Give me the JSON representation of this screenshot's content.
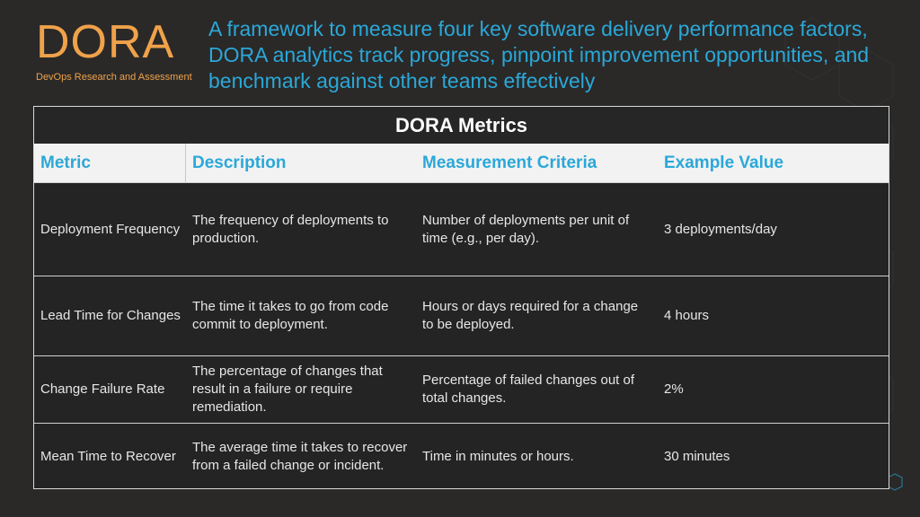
{
  "logo": {
    "title": "DORA",
    "subtitle": "DevOps Research and Assessment"
  },
  "headline": "A framework to measure four key software delivery performance factors, DORA analytics track progress, pinpoint improvement opportunities, and benchmark against other teams effectively",
  "table": {
    "title": "DORA Metrics",
    "headers": [
      "Metric",
      "Description",
      "Measurement Criteria",
      "Example Value"
    ],
    "rows": [
      {
        "metric": "Deployment Frequency",
        "description": "The frequency of deployments to production.",
        "criteria": "Number of deployments per unit of time (e.g., per day).",
        "example": "3 deployments/day"
      },
      {
        "metric": "Lead Time for Changes",
        "description": "The time it takes to go from code commit to deployment.",
        "criteria": "Hours or days required for a change to be deployed.",
        "example": "4 hours"
      },
      {
        "metric": "Change Failure Rate",
        "description": "The percentage of changes that result in a failure or require remediation.",
        "criteria": "Percentage of failed changes out of total changes.",
        "example": "2%"
      },
      {
        "metric": "Mean Time to Recover",
        "description": "The average time it takes to recover from a failed change or incident.",
        "criteria": "Time in minutes or hours.",
        "example": "30 minutes"
      }
    ]
  },
  "colors": {
    "background": "#2a2928",
    "accent_orange": "#f0a24a",
    "accent_blue": "#2ba8d8",
    "header_bg": "#f2f2f2"
  }
}
